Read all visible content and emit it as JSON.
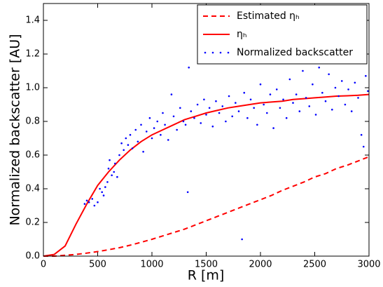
{
  "chart_data": {
    "type": "line",
    "xlabel": "R [m]",
    "ylabel": "Normalized backscatter [AU]",
    "xlim": [
      0,
      3000
    ],
    "xticks": [
      0,
      500,
      1000,
      1500,
      2000,
      2500,
      3000
    ],
    "ylim": [
      0,
      1.5
    ],
    "yticks": [
      {
        "value": 0,
        "label": "0.0"
      },
      0.2,
      0.4,
      0.6,
      0.8,
      {
        "value": 1,
        "label": "1.0"
      },
      1.2,
      1.4
    ],
    "legend": "upper right",
    "x": [
      0,
      100,
      200,
      300,
      400,
      500,
      600,
      700,
      800,
      900,
      1000,
      1100,
      1200,
      1300,
      1400,
      1500,
      1600,
      1700,
      1800,
      1900,
      2000,
      2100,
      2200,
      2300,
      2400,
      2500,
      2600,
      2700,
      2800,
      2900,
      3000
    ],
    "series": [
      {
        "name": "Estimated ηₕ",
        "color": "#ff0000",
        "dash": true,
        "values": [
          0,
          0,
          0.005,
          0.01,
          0.018,
          0.027,
          0.038,
          0.05,
          0.065,
          0.082,
          0.1,
          0.12,
          0.14,
          0.16,
          0.185,
          0.21,
          0.235,
          0.26,
          0.285,
          0.31,
          0.335,
          0.36,
          0.39,
          0.415,
          0.44,
          0.47,
          0.49,
          0.52,
          0.54,
          0.565,
          0.59
        ]
      },
      {
        "name": "ηₕ",
        "color": "#ff0000",
        "dash": false,
        "values": [
          0,
          0.01,
          0.06,
          0.19,
          0.31,
          0.42,
          0.5,
          0.57,
          0.63,
          0.68,
          0.72,
          0.75,
          0.78,
          0.81,
          0.83,
          0.85,
          0.865,
          0.88,
          0.89,
          0.9,
          0.91,
          0.915,
          0.92,
          0.93,
          0.935,
          0.94,
          0.945,
          0.95,
          0.952,
          0.955,
          0.96
        ]
      },
      {
        "name": "Normalized backscatter",
        "color": "#0000ff",
        "type": "scatter",
        "x": [
          380,
          400,
          420,
          450,
          470,
          500,
          520,
          540,
          555,
          570,
          590,
          600,
          610,
          630,
          650,
          660,
          680,
          700,
          720,
          740,
          760,
          780,
          800,
          820,
          850,
          870,
          900,
          920,
          950,
          980,
          1000,
          1020,
          1050,
          1080,
          1100,
          1120,
          1150,
          1180,
          1200,
          1230,
          1260,
          1290,
          1310,
          1330,
          1340,
          1360,
          1390,
          1420,
          1450,
          1480,
          1500,
          1530,
          1560,
          1590,
          1620,
          1650,
          1680,
          1710,
          1740,
          1770,
          1800,
          1830,
          1850,
          1880,
          1910,
          1940,
          1970,
          2000,
          2030,
          2060,
          2090,
          2120,
          2150,
          2180,
          2210,
          2240,
          2270,
          2300,
          2330,
          2360,
          2390,
          2420,
          2450,
          2480,
          2510,
          2540,
          2570,
          2600,
          2630,
          2660,
          2690,
          2720,
          2750,
          2780,
          2810,
          2840,
          2870,
          2900,
          2930,
          2950,
          2970,
          2990
        ],
        "values": [
          0.31,
          0.33,
          0.32,
          0.34,
          0.3,
          0.32,
          0.4,
          0.38,
          0.36,
          0.41,
          0.44,
          0.52,
          0.57,
          0.48,
          0.5,
          0.55,
          0.47,
          0.6,
          0.67,
          0.63,
          0.7,
          0.66,
          0.72,
          0.64,
          0.75,
          0.68,
          0.78,
          0.62,
          0.74,
          0.82,
          0.7,
          0.76,
          0.8,
          0.72,
          0.85,
          0.78,
          0.69,
          0.96,
          0.83,
          0.75,
          0.88,
          0.8,
          0.78,
          0.38,
          1.12,
          0.86,
          0.82,
          0.9,
          0.79,
          0.93,
          0.84,
          0.88,
          0.77,
          0.92,
          0.85,
          0.89,
          0.8,
          0.95,
          0.83,
          0.91,
          0.86,
          0.1,
          0.97,
          0.82,
          0.93,
          0.88,
          0.78,
          1.02,
          0.9,
          0.85,
          0.96,
          0.76,
          0.99,
          0.88,
          0.93,
          0.82,
          1.05,
          0.91,
          0.96,
          0.86,
          1.1,
          0.94,
          0.89,
          1.02,
          0.84,
          1.12,
          0.97,
          0.92,
          1.08,
          0.87,
          1.0,
          0.95,
          1.04,
          0.9,
          0.99,
          0.86,
          1.03,
          0.94,
          0.72,
          0.65,
          1.07,
          0.98
        ]
      }
    ]
  }
}
